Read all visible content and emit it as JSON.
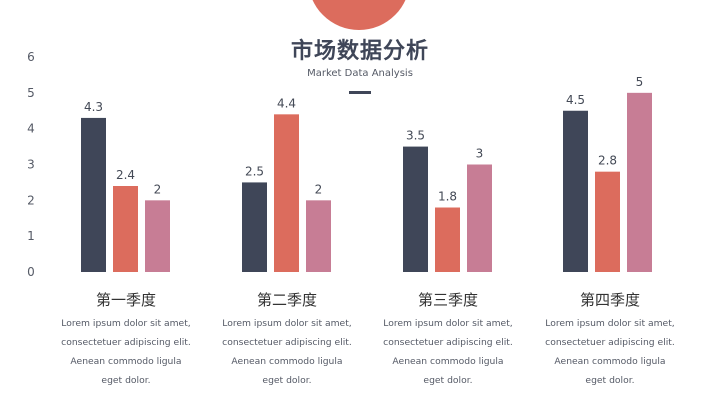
{
  "header": {
    "title": "市场数据分析",
    "subtitle": "Market Data Analysis"
  },
  "colors": {
    "accent": "#dc6c5d",
    "series": [
      "#3f4658",
      "#dc6c5d",
      "#c77d95"
    ],
    "axis_text": "#555a66"
  },
  "chart_data": {
    "type": "bar",
    "categories": [
      "第一季度",
      "第二季度",
      "第三季度",
      "第四季度"
    ],
    "series": [
      {
        "values": [
          4.3,
          2.5,
          3.5,
          4.5
        ]
      },
      {
        "values": [
          2.4,
          4.4,
          1.8,
          2.8
        ]
      },
      {
        "values": [
          2,
          2,
          3,
          5
        ]
      }
    ],
    "ylim": [
      0,
      6
    ],
    "yticks": [
      "0",
      "1",
      "2",
      "3",
      "4",
      "5",
      "6"
    ],
    "data_labels": [
      [
        "4.3",
        "2.4",
        "2"
      ],
      [
        "2.5",
        "4.4",
        "2"
      ],
      [
        "3.5",
        "1.8",
        "3"
      ],
      [
        "4.5",
        "2.8",
        "5"
      ]
    ],
    "grid": false,
    "legend": "none",
    "title": "",
    "xlabel": "",
    "ylabel": ""
  },
  "quarters": [
    {
      "name": "第一季度",
      "desc": [
        "Lorem ipsum dolor sit amet,",
        "consectetuer adipiscing elit.",
        "Aenean commodo ligula",
        "eget dolor."
      ]
    },
    {
      "name": "第二季度",
      "desc": [
        "Lorem ipsum dolor sit amet,",
        "consectetuer adipiscing elit.",
        "Aenean commodo ligula",
        "eget dolor."
      ]
    },
    {
      "name": "第三季度",
      "desc": [
        "Lorem ipsum dolor sit amet,",
        "consectetuer adipiscing elit.",
        "Aenean commodo ligula",
        "eget dolor."
      ]
    },
    {
      "name": "第四季度",
      "desc": [
        "Lorem ipsum dolor sit amet,",
        "consectetuer adipiscing elit.",
        "Aenean commodo ligula",
        "eget dolor."
      ]
    }
  ]
}
